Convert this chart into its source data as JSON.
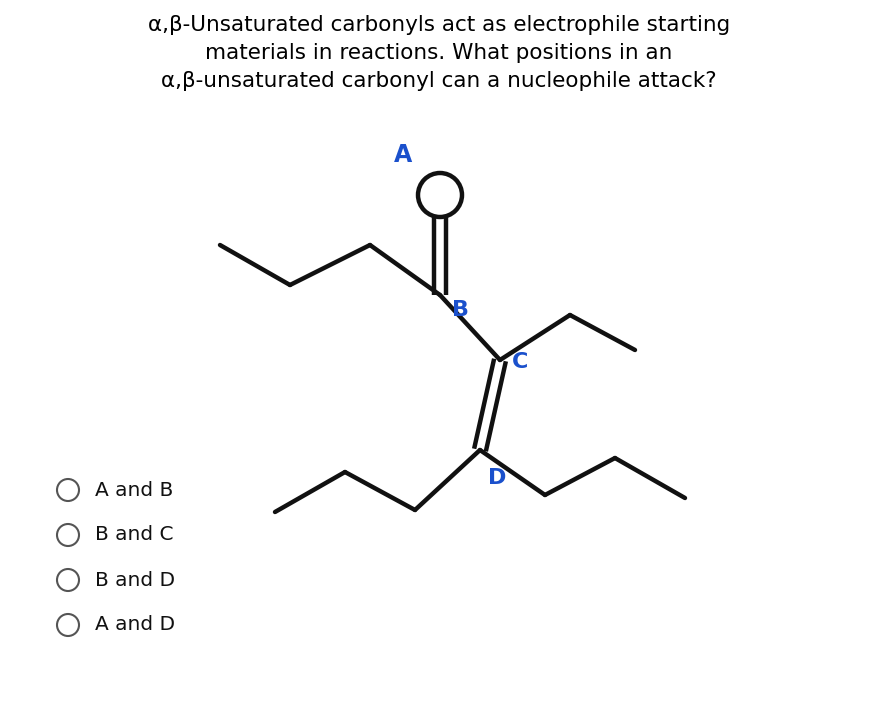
{
  "title_lines": [
    "α,β-Unsaturated carbonyls act as electrophile starting",
    "materials in reactions. What positions in an",
    "α,β-unsaturated carbonyl can a nucleophile attack?"
  ],
  "title_fontsize": 15.5,
  "title_color": "#000000",
  "bg_color": "#ffffff",
  "label_color": "#1a50cc",
  "options": [
    "A and B",
    "B and C",
    "B and D",
    "A and D"
  ],
  "option_fontsize": 14.5
}
